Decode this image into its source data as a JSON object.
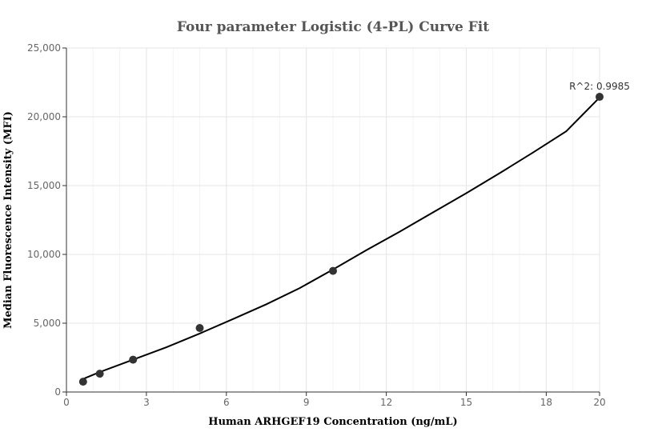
{
  "chart_data": {
    "type": "scatter",
    "title": "Four parameter Logistic (4-PL) Curve Fit",
    "xlabel": "Human ARHGEF19 Concentration (ng/mL)",
    "ylabel": "Median Fluorescence Intensity (MFI)",
    "xlim": [
      0,
      20
    ],
    "ylim": [
      0,
      25000
    ],
    "x_ticks": [
      0,
      3,
      6,
      9,
      12,
      15,
      18,
      20
    ],
    "y_ticks": [
      0,
      5000,
      10000,
      15000,
      20000,
      25000
    ],
    "x_tick_labels": [
      "0",
      "3",
      "6",
      "9",
      "12",
      "15",
      "18",
      "20"
    ],
    "y_tick_labels": [
      "0",
      "5,000",
      "10,000",
      "15,000",
      "20,000",
      "25,000"
    ],
    "grid": true,
    "points": {
      "x": [
        0.625,
        1.25,
        2.5,
        5,
        10,
        20
      ],
      "y": [
        750,
        1330,
        2350,
        4650,
        8800,
        21450
      ]
    },
    "fit_curve": {
      "x": [
        0.625,
        1.25,
        2.5,
        3.75,
        5,
        6.25,
        7.5,
        8.75,
        10,
        11.25,
        12.5,
        13.75,
        15,
        16.25,
        17.5,
        18.75,
        20
      ],
      "y": [
        950,
        1450,
        2350,
        3250,
        4250,
        5300,
        6380,
        7550,
        8900,
        10300,
        11650,
        13050,
        14450,
        15900,
        17400,
        18950,
        21400
      ]
    },
    "annotation": "R^2: 0.9985",
    "colors": {
      "points": "#333333",
      "curve": "#000000",
      "grid": "#e6e6e6"
    }
  }
}
